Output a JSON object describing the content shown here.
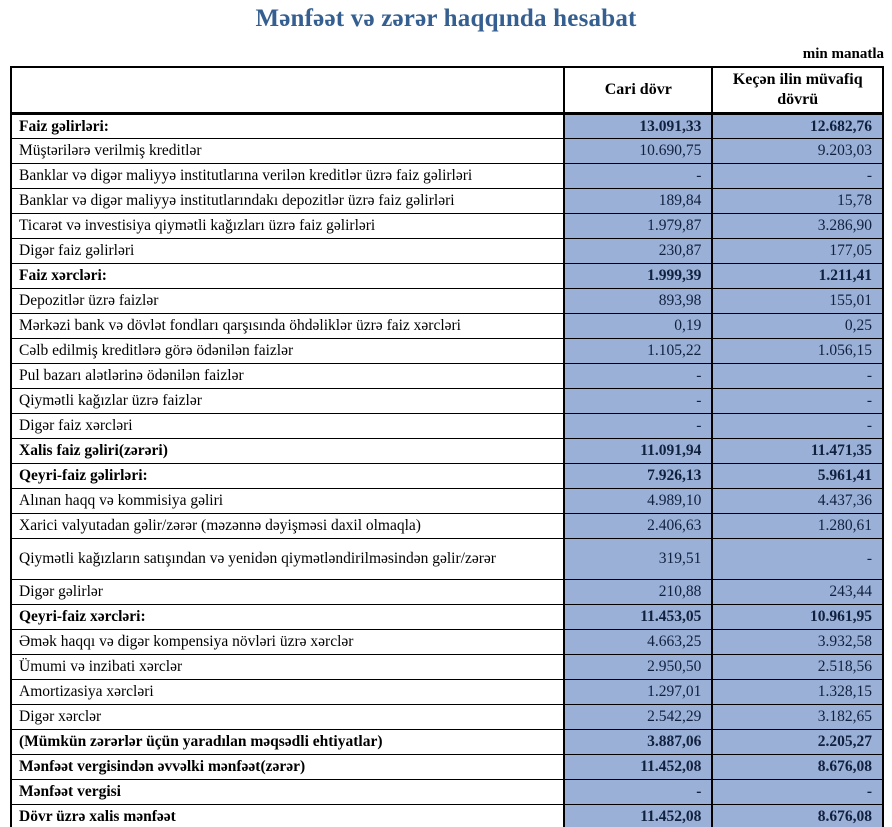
{
  "title": "Mənfəət və zərər haqqında hesabat",
  "unit_label": "min manatla",
  "colors": {
    "title_text": "#365f91",
    "value_cell_fill": "#9bb0d6",
    "table_border": "#000000",
    "value_text": "#10203f"
  },
  "table": {
    "columns": [
      "",
      "Cari dövr",
      "Keçən ilin müvafiq dövrü"
    ],
    "rows": [
      {
        "label": "Faiz gəlirləri:",
        "current": "13.091,33",
        "previous": "12.682,76",
        "bold": true,
        "tall": false
      },
      {
        "label": "Müştərilərə verilmiş kreditlər",
        "current": "10.690,75",
        "previous": "9.203,03",
        "bold": false,
        "tall": false
      },
      {
        "label": "Banklar və digər maliyyə institutlarına verilən kreditlər üzrə faiz gəlirləri",
        "current": "-",
        "previous": "-",
        "bold": false,
        "tall": false
      },
      {
        "label": "Banklar və digər maliyyə institutlarındakı depozitlər üzrə faiz gəlirləri",
        "current": "189,84",
        "previous": "15,78",
        "bold": false,
        "tall": false
      },
      {
        "label": "Ticarət və investisiya qiymətli kağızları üzrə faiz gəlirləri",
        "current": "1.979,87",
        "previous": "3.286,90",
        "bold": false,
        "tall": false
      },
      {
        "label": "Digər faiz gəlirləri",
        "current": "230,87",
        "previous": "177,05",
        "bold": false,
        "tall": false
      },
      {
        "label": "Faiz xərcləri:",
        "current": "1.999,39",
        "previous": "1.211,41",
        "bold": true,
        "tall": false
      },
      {
        "label": "Depozitlər üzrə faizlər",
        "current": "893,98",
        "previous": "155,01",
        "bold": false,
        "tall": false
      },
      {
        "label": "Mərkəzi bank və dövlət fondları qarşısında öhdəliklər üzrə faiz xərcləri",
        "current": "0,19",
        "previous": "0,25",
        "bold": false,
        "tall": false
      },
      {
        "label": "Cəlb edilmiş kreditlərə görə ödənilən faizlər",
        "current": "1.105,22",
        "previous": "1.056,15",
        "bold": false,
        "tall": false
      },
      {
        "label": "Pul bazarı alətlərinə ödənilən faizlər",
        "current": "-",
        "previous": "-",
        "bold": false,
        "tall": false
      },
      {
        "label": "Qiymətli kağızlar üzrə faizlər",
        "current": "-",
        "previous": "-",
        "bold": false,
        "tall": false
      },
      {
        "label": "Digər faiz xərcləri",
        "current": "-",
        "previous": "-",
        "bold": false,
        "tall": false
      },
      {
        "label": "Xalis faiz gəliri(zərəri)",
        "current": "11.091,94",
        "previous": "11.471,35",
        "bold": true,
        "tall": false
      },
      {
        "label": "Qeyri-faiz gəlirləri:",
        "current": "7.926,13",
        "previous": "5.961,41",
        "bold": true,
        "tall": false
      },
      {
        "label": "Alınan haqq və kommisiya gəliri",
        "current": "4.989,10",
        "previous": "4.437,36",
        "bold": false,
        "tall": false
      },
      {
        "label": "Xarici valyutadan gəlir/zərər (məzənnə dəyişməsi daxil olmaqla)",
        "current": "2.406,63",
        "previous": "1.280,61",
        "bold": false,
        "tall": false
      },
      {
        "label": "Qiymətli kağızların satışından və yenidən qiymətləndirilməsindən gəlir/zərər",
        "current": "319,51",
        "previous": "-",
        "bold": false,
        "tall": true
      },
      {
        "label": "Digər gəlirlər",
        "current": "210,88",
        "previous": "243,44",
        "bold": false,
        "tall": false
      },
      {
        "label": "Qeyri-faiz xərcləri:",
        "current": "11.453,05",
        "previous": "10.961,95",
        "bold": true,
        "tall": false
      },
      {
        "label": "Əmək haqqı və digər kompensiya növləri üzrə xərclər",
        "current": "4.663,25",
        "previous": "3.932,58",
        "bold": false,
        "tall": false
      },
      {
        "label": "Ümumi və inzibati xərclər",
        "current": "2.950,50",
        "previous": "2.518,56",
        "bold": false,
        "tall": false
      },
      {
        "label": "Amortizasiya xərcləri",
        "current": "1.297,01",
        "previous": "1.328,15",
        "bold": false,
        "tall": false
      },
      {
        "label": "Digər xərclər",
        "current": "2.542,29",
        "previous": "3.182,65",
        "bold": false,
        "tall": false
      },
      {
        "label": "(Mümkün zərərlər üçün yaradılan məqsədli ehtiyatlar)",
        "current": "3.887,06",
        "previous": "2.205,27",
        "bold": true,
        "tall": false
      },
      {
        "label": "Mənfəət vergisindən əvvəlki mənfəət(zərər)",
        "current": "11.452,08",
        "previous": "8.676,08",
        "bold": true,
        "tall": false
      },
      {
        "label": "Mənfəət vergisi",
        "current": "-",
        "previous": "-",
        "bold": true,
        "tall": false
      },
      {
        "label": "Dövr üzrə xalis mənfəət",
        "current": "11.452,08",
        "previous": "8.676,08",
        "bold": true,
        "tall": false
      }
    ]
  }
}
